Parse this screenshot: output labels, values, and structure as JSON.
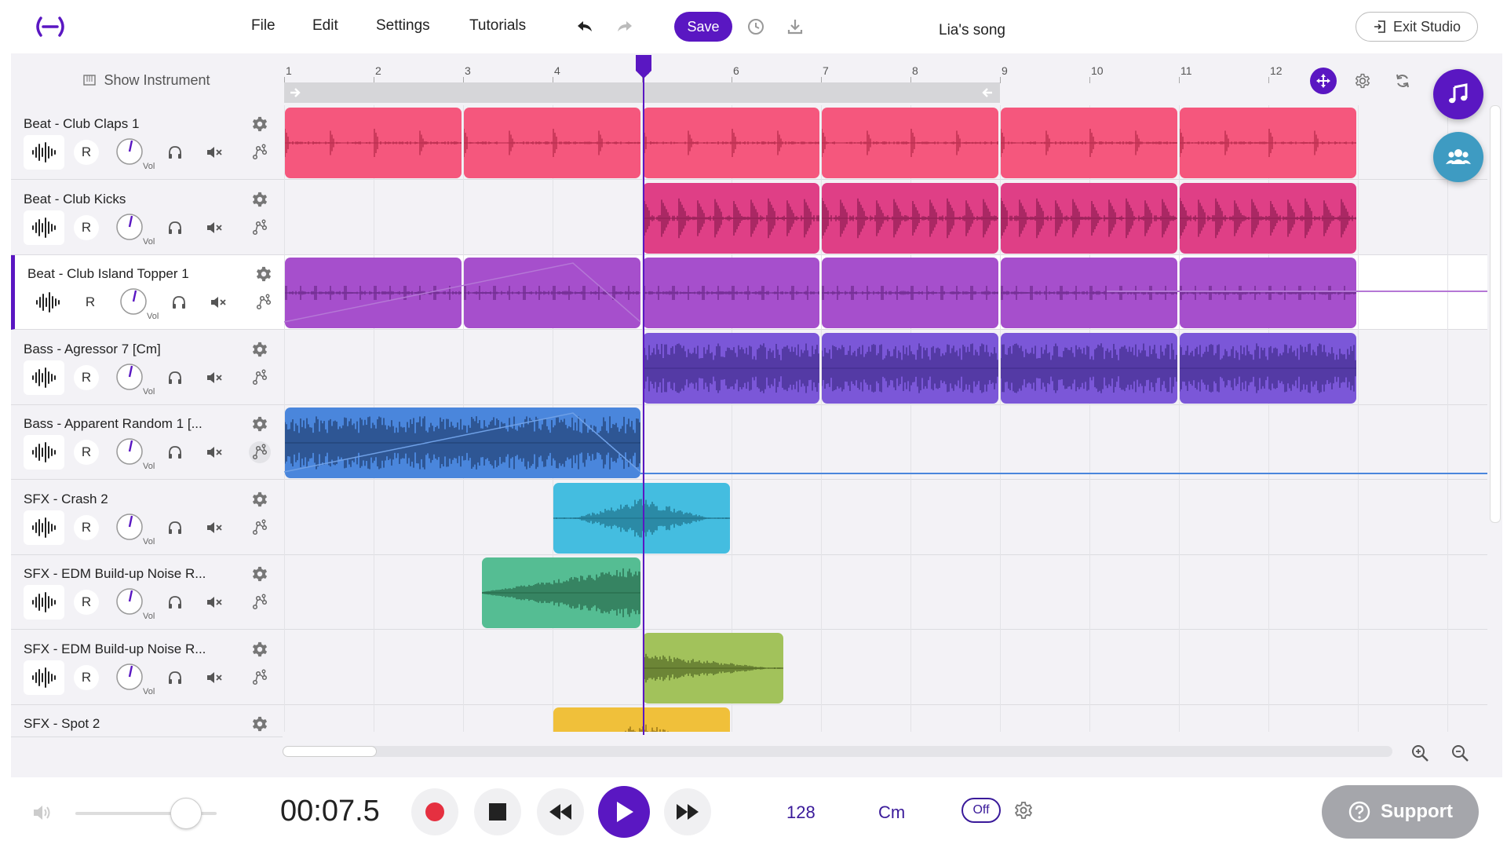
{
  "header": {
    "logo": "logo-icon",
    "menu": [
      "File",
      "Edit",
      "Settings",
      "Tutorials"
    ],
    "save_label": "Save",
    "song_title": "Lia's song",
    "exit_label": "Exit Studio"
  },
  "tracks_header": {
    "show_instrument_label": "Show Instrument"
  },
  "ruler": {
    "bars": [
      "1",
      "2",
      "3",
      "4",
      "5",
      "6",
      "7",
      "8",
      "9",
      "10",
      "11",
      "12"
    ]
  },
  "tracks": [
    {
      "name": "Beat - Club Claps 1",
      "color": "#f5577d",
      "wave": "#b52a4b"
    },
    {
      "name": "Beat - Club Kicks",
      "color": "#df3f86",
      "wave": "#8e1d52"
    },
    {
      "name": "Beat - Club Island Topper 1",
      "color": "#a64fcc",
      "wave": "#6b2a8a"
    },
    {
      "name": "Bass - Agressor 7 [Cm]",
      "color": "#7b57d8",
      "wave": "#3f2a8a"
    },
    {
      "name": "Bass - Apparent Random 1 [...",
      "color": "#4a86dc",
      "wave": "#1f3d6e"
    },
    {
      "name": "SFX - Crash 2",
      "color": "#44bde0",
      "wave": "#1e6f87"
    },
    {
      "name": "SFX - EDM Build-up Noise R...",
      "color": "#55bd93",
      "wave": "#256647"
    },
    {
      "name": "SFX - EDM Build-up Noise R...",
      "color": "#a2c25b",
      "wave": "#4f6422"
    },
    {
      "name": "SFX - Spot 2",
      "color": "#f0c03a",
      "wave": "#8a6a12"
    }
  ],
  "track_controls": {
    "record_label": "R",
    "vol_label": "Vol"
  },
  "transport": {
    "time": "00:07.5",
    "tempo": "128",
    "key": "Cm",
    "metronome": "Off",
    "volume_level": 0.78
  },
  "support_label": "Support",
  "colors": {
    "accent": "#5a17c2",
    "collab": "#3e9bc2"
  }
}
